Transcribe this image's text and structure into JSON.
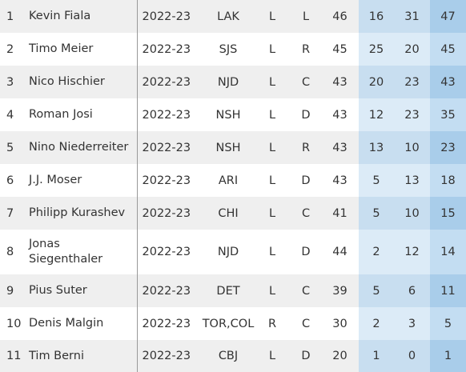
{
  "rows": [
    {
      "rank": "1",
      "name": "Kevin Fiala",
      "season": "2022-23",
      "team": "LAK",
      "shoots": "L",
      "pos": "L",
      "gp": "46",
      "g": "16",
      "a": "31",
      "p": "47"
    },
    {
      "rank": "2",
      "name": "Timo Meier",
      "season": "2022-23",
      "team": "SJS",
      "shoots": "L",
      "pos": "R",
      "gp": "45",
      "g": "25",
      "a": "20",
      "p": "45"
    },
    {
      "rank": "3",
      "name": "Nico Hischier",
      "season": "2022-23",
      "team": "NJD",
      "shoots": "L",
      "pos": "C",
      "gp": "43",
      "g": "20",
      "a": "23",
      "p": "43"
    },
    {
      "rank": "4",
      "name": "Roman Josi",
      "season": "2022-23",
      "team": "NSH",
      "shoots": "L",
      "pos": "D",
      "gp": "43",
      "g": "12",
      "a": "23",
      "p": "35"
    },
    {
      "rank": "5",
      "name": "Nino Niederreiter",
      "season": "2022-23",
      "team": "NSH",
      "shoots": "L",
      "pos": "R",
      "gp": "43",
      "g": "13",
      "a": "10",
      "p": "23"
    },
    {
      "rank": "6",
      "name": "J.J. Moser",
      "season": "2022-23",
      "team": "ARI",
      "shoots": "L",
      "pos": "D",
      "gp": "43",
      "g": "5",
      "a": "13",
      "p": "18"
    },
    {
      "rank": "7",
      "name": "Philipp Kurashev",
      "season": "2022-23",
      "team": "CHI",
      "shoots": "L",
      "pos": "C",
      "gp": "41",
      "g": "5",
      "a": "10",
      "p": "15"
    },
    {
      "rank": "8",
      "name": "Jonas Siegenthaler",
      "season": "2022-23",
      "team": "NJD",
      "shoots": "L",
      "pos": "D",
      "gp": "44",
      "g": "2",
      "a": "12",
      "p": "14"
    },
    {
      "rank": "9",
      "name": "Pius Suter",
      "season": "2022-23",
      "team": "DET",
      "shoots": "L",
      "pos": "C",
      "gp": "39",
      "g": "5",
      "a": "6",
      "p": "11"
    },
    {
      "rank": "10",
      "name": "Denis Malgin",
      "season": "2022-23",
      "team": "TOR,COL",
      "shoots": "R",
      "pos": "C",
      "gp": "30",
      "g": "2",
      "a": "3",
      "p": "5"
    },
    {
      "rank": "11",
      "name": "Tim Berni",
      "season": "2022-23",
      "team": "CBJ",
      "shoots": "L",
      "pos": "D",
      "gp": "20",
      "g": "1",
      "a": "0",
      "p": "1"
    }
  ]
}
